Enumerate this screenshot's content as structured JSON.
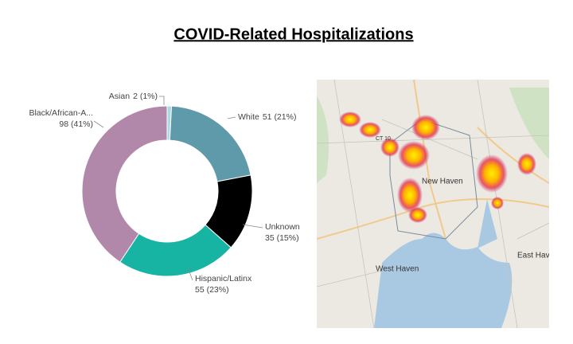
{
  "chart_data": {
    "type": "donut",
    "title": "COVID-Related Hospitalizations",
    "categories": [
      "Asian",
      "White",
      "Unknown",
      "Hispanic/Latinx",
      "Black/African-A..."
    ],
    "values": [
      2,
      51,
      35,
      55,
      98
    ],
    "value_labels": [
      "2 (1%)",
      "51 (21%)",
      "35 (15%)",
      "55 (23%)",
      "98 (41%)"
    ],
    "colors": [
      "#a9dbe3",
      "#5f9aab",
      "#000000",
      "#17b3a3",
      "#b187aa"
    ]
  },
  "map": {
    "labels": [
      "New Haven",
      "West Haven",
      "East Hav",
      "CT 10"
    ]
  }
}
